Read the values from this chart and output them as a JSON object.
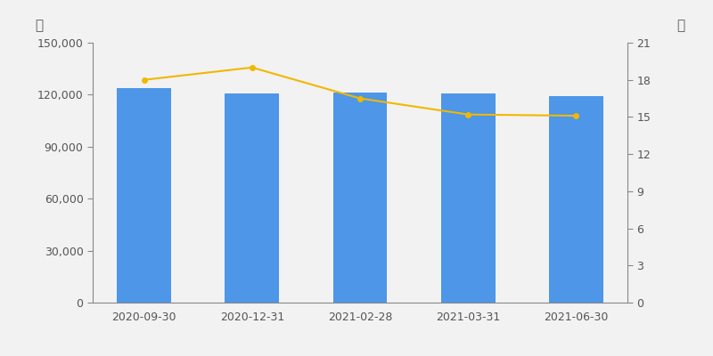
{
  "categories": [
    "2020-09-30",
    "2020-12-31",
    "2021-02-28",
    "2021-03-31",
    "2021-06-30"
  ],
  "bar_values": [
    124000,
    120500,
    121000,
    120500,
    119000
  ],
  "line_values": [
    18.0,
    19.0,
    16.5,
    15.2,
    15.1
  ],
  "bar_color": "#4D96E8",
  "line_color": "#F0B800",
  "left_ylabel": "户",
  "right_ylabel": "元",
  "left_ylim": [
    0,
    150000
  ],
  "right_ylim": [
    0,
    21
  ],
  "left_yticks": [
    0,
    30000,
    60000,
    90000,
    120000,
    150000
  ],
  "right_yticks": [
    0,
    3,
    6,
    9,
    12,
    15,
    18,
    21
  ],
  "background_color": "#F2F2F2",
  "bar_width": 0.5,
  "line_marker": "o",
  "line_marker_size": 4,
  "line_width": 1.5
}
